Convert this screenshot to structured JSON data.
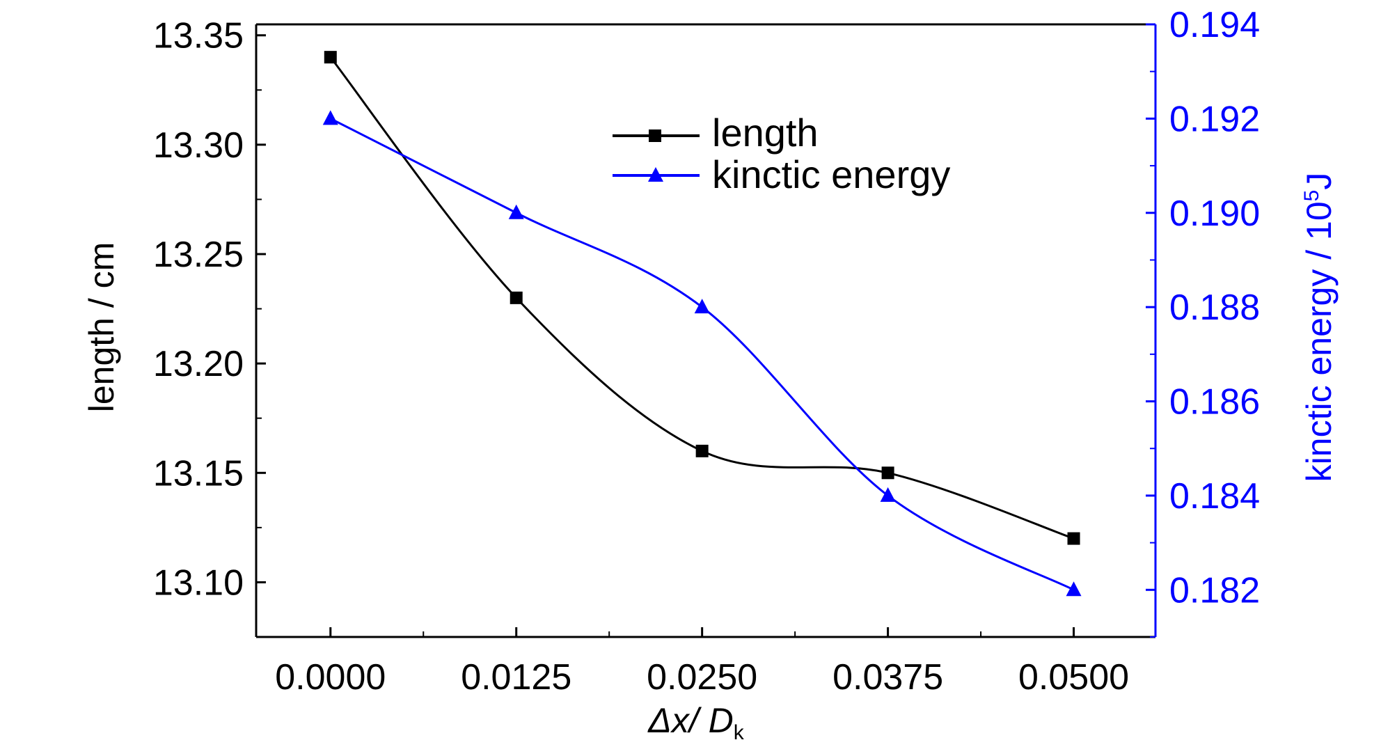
{
  "chart_data": {
    "type": "line",
    "xlabel": "Δx/ D",
    "xlabel_parts": {
      "main": "Δx/ D",
      "sub": "k"
    },
    "ylabel_left": "length / cm",
    "ylabel_right": "kinctic energy / 10",
    "ylabel_right_parts": {
      "main": "kinctic energy / 10",
      "sup": "5",
      "unit": "J"
    },
    "x": [
      0.0,
      0.0125,
      0.025,
      0.0375,
      0.05
    ],
    "x_ticks": [
      "0.0000",
      "0.0125",
      "0.0250",
      "0.0375",
      "0.0500"
    ],
    "xlim": [
      -0.005,
      0.0555
    ],
    "ylim_left": [
      13.075,
      13.355
    ],
    "ylim_right": [
      0.181,
      0.194
    ],
    "y_left_ticks": [
      "13.10",
      "13.15",
      "13.20",
      "13.25",
      "13.30",
      "13.35"
    ],
    "y_right_ticks": [
      "0.182",
      "0.184",
      "0.186",
      "0.188",
      "0.190",
      "0.192",
      "0.194"
    ],
    "grid": false,
    "legend_position": "top-center",
    "series": [
      {
        "name": "length",
        "axis": "left",
        "marker": "square",
        "color": "#000000",
        "values": [
          13.34,
          13.23,
          13.16,
          13.15,
          13.12
        ]
      },
      {
        "name": "kinctic energy",
        "axis": "right",
        "marker": "triangle",
        "color": "#0000ff",
        "values": [
          0.192,
          0.19,
          0.188,
          0.184,
          0.182
        ]
      }
    ]
  }
}
